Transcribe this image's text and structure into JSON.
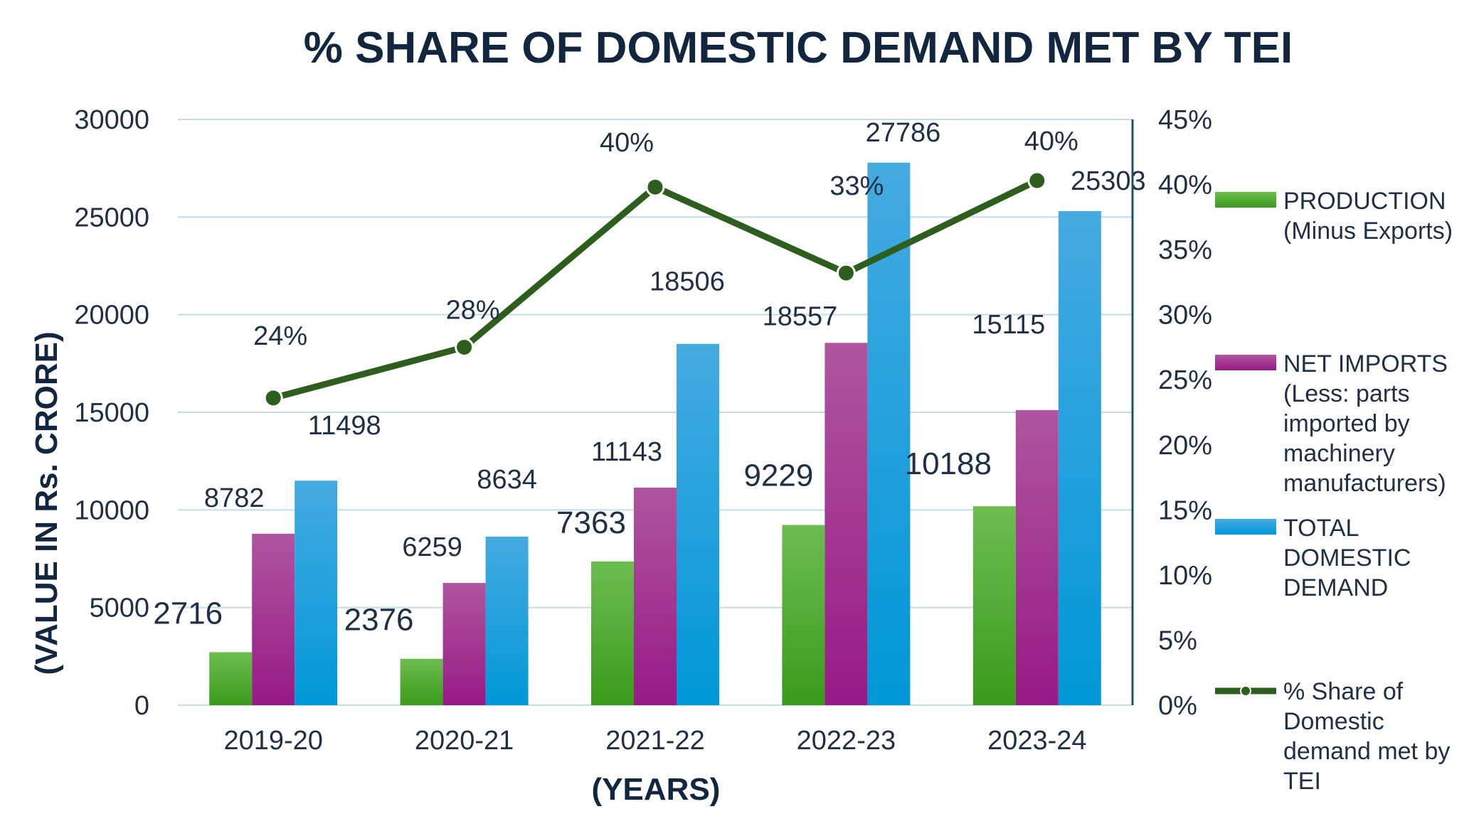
{
  "chart_data": {
    "type": "bar",
    "title": "% SHARE OF DOMESTIC DEMAND MET BY TEI",
    "xlabel": "(YEARS)",
    "ylabel": "(VALUE IN Rs. CRORE)",
    "categories": [
      "2019-20",
      "2020-21",
      "2021-22",
      "2022-23",
      "2023-24"
    ],
    "ylim": [
      0,
      30000
    ],
    "y_ticks": [
      "0",
      "5000",
      "10000",
      "15000",
      "20000",
      "25000",
      "30000"
    ],
    "y2lim": [
      0,
      45
    ],
    "y2_ticks": [
      "0%",
      "5%",
      "10%",
      "15%",
      "20%",
      "25%",
      "30%",
      "35%",
      "40%",
      "45%"
    ],
    "grid": true,
    "legend_position": "right",
    "series": [
      {
        "name": "PRODUCTION (Minus Exports)",
        "legend_lines": [
          "PRODUCTION",
          "(Minus Exports)"
        ],
        "type": "bar",
        "color": "#4ca62c",
        "values": [
          2716,
          2376,
          7363,
          9229,
          10188
        ],
        "labels": [
          "2716",
          "2376",
          "7363",
          "9229",
          "10188"
        ]
      },
      {
        "name": "NET IMPORTS (Less: parts imported by machinery manufacturers)",
        "legend_lines": [
          "NET IMPORTS",
          "(Less: parts",
          "imported by",
          "machinery",
          "manufacturers)"
        ],
        "type": "bar",
        "color": "#a0208f",
        "values": [
          8782,
          6259,
          11143,
          18557,
          15115
        ],
        "labels": [
          "8782",
          "6259",
          "11143",
          "18557",
          "15115"
        ]
      },
      {
        "name": "TOTAL DOMESTIC DEMAND",
        "legend_lines": [
          "TOTAL",
          "DOMESTIC",
          "DEMAND"
        ],
        "type": "bar",
        "color": "#1aa3dc",
        "values": [
          11498,
          8634,
          18506,
          27786,
          25303
        ],
        "labels": [
          "11498",
          "8634",
          "18506",
          "27786",
          "25303"
        ]
      },
      {
        "name": "% Share of Domestic demand met by TEI",
        "legend_lines": [
          "% Share of",
          "Domestic",
          "demand met by",
          "TEI"
        ],
        "type": "line",
        "axis": "secondary",
        "color": "#2e5e1d",
        "values": [
          23.6,
          27.5,
          39.8,
          33.2,
          40.3
        ],
        "labels": [
          "24%",
          "28%",
          "40%",
          "33%",
          "40%"
        ]
      }
    ]
  }
}
